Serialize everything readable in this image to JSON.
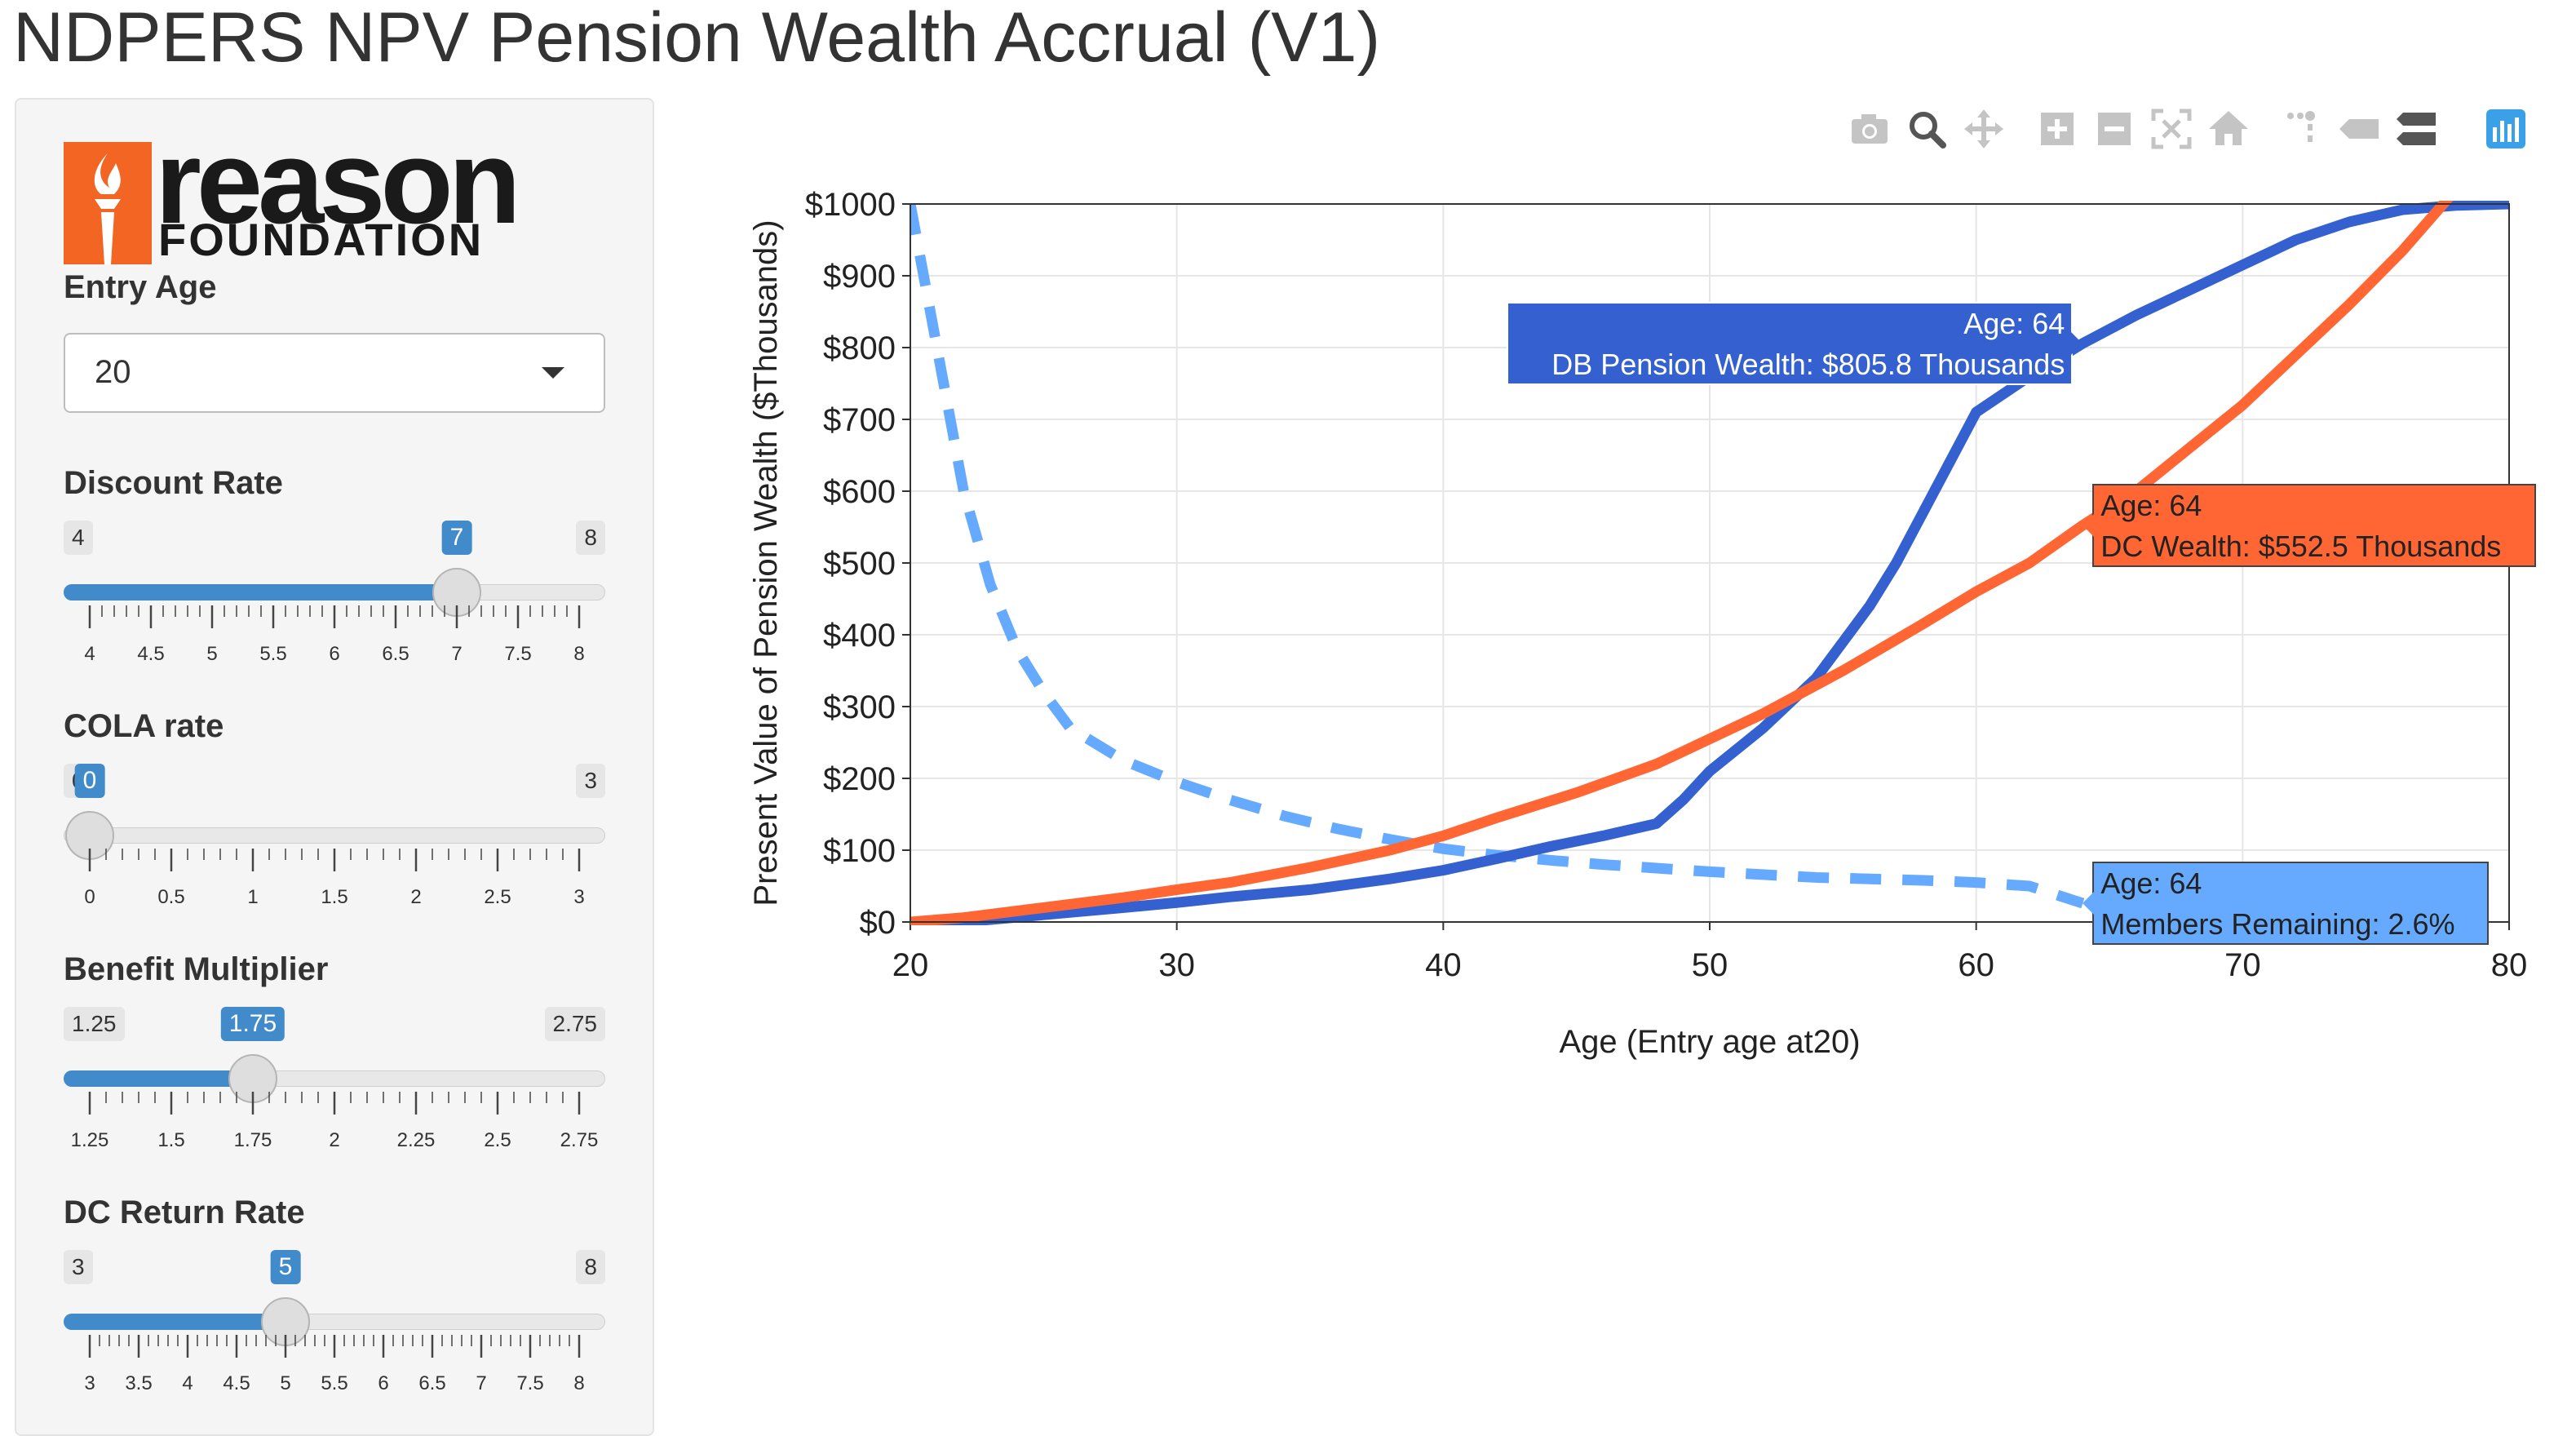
{
  "page": {
    "title": "NDPERS NPV Pension Wealth Accrual (V1)"
  },
  "logo": {
    "word": "reason",
    "sub": "FOUNDATION"
  },
  "controls": {
    "entry_age": {
      "label": "Entry Age",
      "value": "20"
    },
    "discount_rate": {
      "label": "Discount Rate",
      "min": "4",
      "max": "8",
      "value": "7",
      "fraction": 0.75,
      "tick_labels": [
        "4",
        "4.5",
        "5",
        "5.5",
        "6",
        "6.5",
        "7",
        "7.5",
        "8"
      ]
    },
    "cola_rate": {
      "label": "COLA rate",
      "min": "0",
      "max": "3",
      "value": "0",
      "fraction": 0.0,
      "tick_labels": [
        "0",
        "0.5",
        "1",
        "1.5",
        "2",
        "2.5",
        "3"
      ]
    },
    "benefit_multiplier": {
      "label": "Benefit Multiplier",
      "min": "1.25",
      "max": "2.75",
      "value": "1.75",
      "fraction": 0.3333,
      "tick_labels": [
        "1.25",
        "1.5",
        "1.75",
        "2",
        "2.25",
        "2.5",
        "2.75"
      ]
    },
    "dc_return_rate": {
      "label": "DC Return Rate",
      "min": "3",
      "max": "8",
      "value": "5",
      "fraction": 0.4,
      "tick_labels": [
        "3",
        "3.5",
        "4",
        "4.5",
        "5",
        "5.5",
        "6",
        "6.5",
        "7",
        "7.5",
        "8"
      ]
    }
  },
  "modebar": {
    "icons": [
      "camera-icon",
      "zoom-icon",
      "pan-icon",
      "zoom-in-icon",
      "zoom-out-icon",
      "autoscale-icon",
      "home-icon",
      "spike-lines-icon",
      "hover-closest-icon",
      "hover-compare-icon",
      "plotly-logo-icon"
    ]
  },
  "colors": {
    "db": "#3461cf",
    "dc": "#ff6633",
    "members": "#66aaff",
    "slider": "#428bca"
  },
  "chart_data": {
    "type": "line",
    "xlabel": "Age (Entry age at20)",
    "ylabel": "Present Value of Pension Wealth ($Thousands)",
    "xlim": [
      20,
      80
    ],
    "ylim": [
      0,
      1000
    ],
    "x_ticks": [
      20,
      30,
      40,
      50,
      60,
      70,
      80
    ],
    "y_ticks": [
      0,
      100,
      200,
      300,
      400,
      500,
      600,
      700,
      800,
      900,
      1000
    ],
    "y_tick_labels": [
      "$0",
      "$100",
      "$200",
      "$300",
      "$400",
      "$500",
      "$600",
      "$700",
      "$800",
      "$900",
      "$1000"
    ],
    "grid": true,
    "series": [
      {
        "key": "db",
        "x": [
          20,
          22,
          25,
          28,
          30,
          32,
          35,
          38,
          40,
          42,
          44,
          46,
          48,
          49,
          50,
          52,
          54,
          56,
          57,
          58,
          59,
          60,
          62,
          64,
          66,
          68,
          70,
          72,
          74,
          76,
          78,
          80
        ],
        "values": [
          0,
          0,
          10,
          20,
          27,
          35,
          45,
          60,
          72,
          88,
          105,
          120,
          137,
          170,
          210,
          270,
          340,
          440,
          500,
          570,
          640,
          710,
          760,
          805.8,
          845,
          880,
          915,
          950,
          975,
          992,
          998,
          1000
        ]
      },
      {
        "key": "dc",
        "x": [
          20,
          22,
          25,
          28,
          30,
          32,
          35,
          38,
          40,
          42,
          45,
          48,
          50,
          52,
          55,
          58,
          60,
          62,
          64,
          66,
          68,
          70,
          72,
          74,
          76,
          78,
          79
        ],
        "values": [
          0,
          6,
          20,
          34,
          45,
          55,
          76,
          100,
          120,
          145,
          180,
          220,
          255,
          290,
          350,
          415,
          460,
          500,
          552.5,
          600,
          660,
          720,
          790,
          860,
          935,
          1020,
          1075
        ]
      },
      {
        "key": "members",
        "x": [
          20,
          21,
          22,
          23,
          24,
          25,
          26,
          28,
          30,
          32,
          34,
          36,
          38,
          40,
          42,
          44,
          46,
          48,
          50,
          52,
          54,
          56,
          58,
          60,
          62,
          64
        ],
        "values": [
          1000,
          800,
          600,
          470,
          380,
          320,
          270,
          225,
          195,
          170,
          148,
          130,
          115,
          102,
          93,
          86,
          80,
          75,
          70,
          66,
          62,
          60,
          58,
          55,
          50,
          26
        ]
      }
    ],
    "annotations": [
      {
        "key": "db",
        "x": 64,
        "y": 805.8,
        "line1": "Age: 64",
        "line2": "DB Pension Wealth: $805.8 Thousands"
      },
      {
        "key": "dc",
        "x": 64,
        "y": 552.5,
        "line1": "Age: 64",
        "line2": "DC Wealth: $552.5 Thousands"
      },
      {
        "key": "members",
        "x": 64,
        "y": 26,
        "line1": "Age: 64",
        "line2": "Members Remaining: 2.6%"
      }
    ]
  }
}
